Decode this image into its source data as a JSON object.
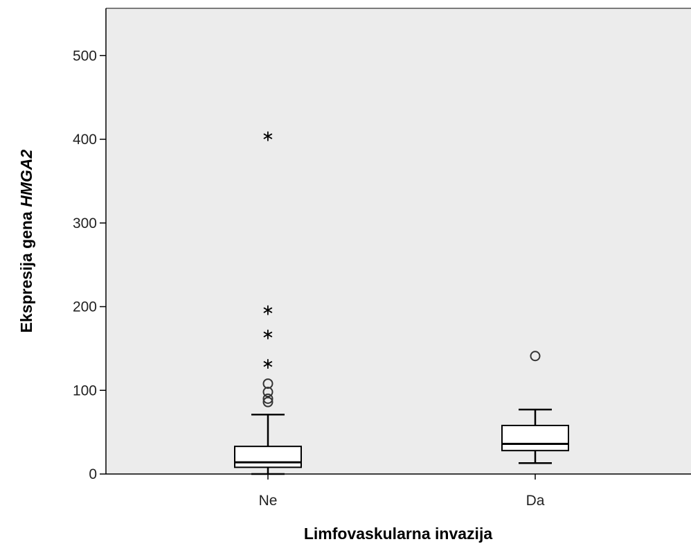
{
  "chart_data": {
    "type": "boxplot",
    "xlabel": "Limfovaskularna invazija",
    "ylabel_main": "Ekspresija gena ",
    "ylabel_gene": "HMGA2",
    "ylim": [
      0,
      550
    ],
    "yticks": [
      0,
      100,
      200,
      300,
      400,
      500
    ],
    "categories": [
      "Ne",
      "Da"
    ],
    "plot_background": "#ececec",
    "boxes": [
      {
        "category": "Ne",
        "whisker_low": 0,
        "q1": 8,
        "median": 14,
        "q3": 33,
        "whisker_high": 71,
        "outliers": [
          86,
          90,
          98,
          108
        ],
        "extremes": [
          135,
          170,
          199,
          407
        ]
      },
      {
        "category": "Da",
        "whisker_low": 13,
        "q1": 28,
        "median": 36,
        "q3": 58,
        "whisker_high": 77,
        "outliers": [
          141
        ],
        "extremes": []
      }
    ]
  }
}
